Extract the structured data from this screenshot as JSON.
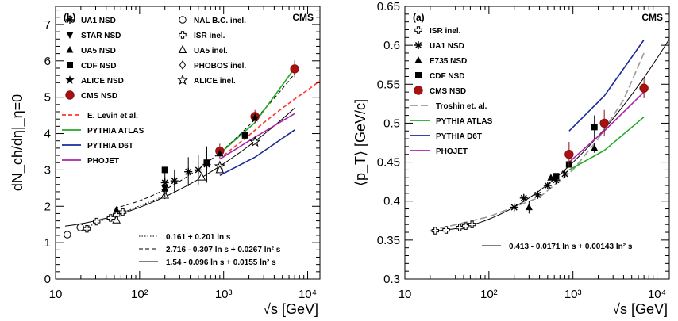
{
  "chart_data": [
    {
      "id": "b",
      "type": "scatter",
      "panel_label": "(b)",
      "experiment_label": "CMS",
      "xlabel": "√s [GeV]",
      "ylabel": "dN_ch/dη|_η=0",
      "xscale": "log",
      "xlim": [
        10,
        14000
      ],
      "ylim": [
        0,
        7.5
      ],
      "x_ticks": [
        {
          "value": 10,
          "label": "10"
        },
        {
          "value": 100,
          "label": "10²"
        },
        {
          "value": 1000,
          "label": "10³"
        },
        {
          "value": 10000,
          "label": "10⁴"
        }
      ],
      "y_ticks": [
        {
          "value": 0,
          "label": "0"
        },
        {
          "value": 1,
          "label": "1"
        },
        {
          "value": 2,
          "label": "2"
        },
        {
          "value": 3,
          "label": "3"
        },
        {
          "value": 4,
          "label": "4"
        },
        {
          "value": 5,
          "label": "5"
        },
        {
          "value": 6,
          "label": "6"
        },
        {
          "value": 7,
          "label": "7"
        }
      ],
      "legend_placement": "top-left",
      "legend_markers": [
        {
          "name": "UA1 NSD",
          "marker": "asterisk",
          "col": 0
        },
        {
          "name": "STAR NSD",
          "marker": "triangle-down",
          "col": 0
        },
        {
          "name": "UA5 NSD",
          "marker": "triangle-up",
          "col": 0
        },
        {
          "name": "CDF NSD",
          "marker": "square",
          "col": 0
        },
        {
          "name": "ALICE NSD",
          "marker": "star",
          "col": 0
        },
        {
          "name": "CMS NSD",
          "marker": "circle-red",
          "col": 0
        },
        {
          "name": "NAL B.C. inel.",
          "marker": "circle-open",
          "col": 1
        },
        {
          "name": "ISR inel.",
          "marker": "cross-open",
          "col": 1
        },
        {
          "name": "UA5 inel.",
          "marker": "triangle-open",
          "col": 1
        },
        {
          "name": "PHOBOS inel.",
          "marker": "diamond-open",
          "col": 1
        },
        {
          "name": "ALICE inel.",
          "marker": "star-open",
          "col": 1
        }
      ],
      "legend_lines": [
        {
          "name": "E. Levin et al.",
          "color": "#ff3333",
          "dash": "dashed"
        },
        {
          "name": "PYTHIA ATLAS",
          "color": "#22aa22",
          "dash": "solid"
        },
        {
          "name": "PYTHIA D6T",
          "color": "#1a2a99",
          "dash": "solid"
        },
        {
          "name": "PHOJET",
          "color": "#aa22aa",
          "dash": "solid"
        }
      ],
      "fit_legend": [
        {
          "name": "0.161 + 0.201 ln s",
          "dash": "dotted"
        },
        {
          "name": "2.716 - 0.307 ln s + 0.0267 ln² s",
          "dash": "dashed"
        },
        {
          "name": "1.54 - 0.096 ln s + 0.0155 ln² s",
          "dash": "solid"
        }
      ],
      "points": [
        {
          "series": "NAL B.C. inel.",
          "marker": "circle-open",
          "x": 13.8,
          "y": 1.22
        },
        {
          "series": "NAL B.C. inel.",
          "marker": "circle-open",
          "x": 19.7,
          "y": 1.42
        },
        {
          "series": "ISR inel.",
          "marker": "cross-open",
          "x": 23.6,
          "y": 1.38
        },
        {
          "series": "ISR inel.",
          "marker": "cross-open",
          "x": 30.8,
          "y": 1.58
        },
        {
          "series": "ISR inel.",
          "marker": "cross-open",
          "x": 45.2,
          "y": 1.68
        },
        {
          "series": "ISR inel.",
          "marker": "cross-open",
          "x": 53,
          "y": 1.76
        },
        {
          "series": "UA5 inel.",
          "marker": "triangle-open",
          "x": 53,
          "y": 1.62
        },
        {
          "series": "UA5 NSD",
          "marker": "triangle-up",
          "x": 53,
          "y": 1.9
        },
        {
          "series": "ISR inel.",
          "marker": "cross-open",
          "x": 63,
          "y": 1.84
        },
        {
          "series": "STAR NSD",
          "marker": "triangle-down",
          "x": 200,
          "y": 2.5,
          "err": 0.3
        },
        {
          "series": "UA5 inel.",
          "marker": "triangle-open",
          "x": 200,
          "y": 2.3
        },
        {
          "series": "PHOBOS inel.",
          "marker": "diamond-open",
          "x": 200,
          "y": 2.45
        },
        {
          "series": "UA5 NSD",
          "marker": "triangle-up",
          "x": 200,
          "y": 2.48
        },
        {
          "series": "UA1 NSD",
          "marker": "asterisk",
          "x": 200,
          "y": 2.65,
          "err": 0.4
        },
        {
          "series": "CDF NSD",
          "marker": "square",
          "x": 200,
          "y": 3.0
        },
        {
          "series": "UA1 NSD",
          "marker": "asterisk",
          "x": 260,
          "y": 2.7,
          "err": 0.3
        },
        {
          "series": "UA1 NSD",
          "marker": "asterisk",
          "x": 380,
          "y": 2.95,
          "err": 0.4
        },
        {
          "series": "UA1 NSD",
          "marker": "asterisk",
          "x": 500,
          "y": 3.0,
          "err": 0.4
        },
        {
          "series": "UA5 inel.",
          "marker": "triangle-open",
          "x": 546,
          "y": 2.8
        },
        {
          "series": "CDF NSD",
          "marker": "square",
          "x": 630,
          "y": 3.2
        },
        {
          "series": "UA1 NSD",
          "marker": "asterisk",
          "x": 630,
          "y": 3.15,
          "err": 0.5
        },
        {
          "series": "ALICE inel.",
          "marker": "star-open",
          "x": 900,
          "y": 3.1
        },
        {
          "series": "UA5 inel.",
          "marker": "triangle-open",
          "x": 900,
          "y": 3.0
        },
        {
          "series": "ALICE NSD",
          "marker": "star",
          "x": 900,
          "y": 3.5
        },
        {
          "series": "CMS NSD",
          "marker": "circle-red",
          "x": 900,
          "y": 3.52,
          "err": 0.2
        },
        {
          "series": "UA5 NSD",
          "marker": "triangle-up",
          "x": 900,
          "y": 3.45
        },
        {
          "series": "CDF NSD",
          "marker": "square",
          "x": 1800,
          "y": 3.95
        },
        {
          "series": "CMS NSD",
          "marker": "circle-red",
          "x": 2360,
          "y": 4.47,
          "err": 0.18
        },
        {
          "series": "ALICE inel.",
          "marker": "star-open",
          "x": 2360,
          "y": 3.77
        },
        {
          "series": "ALICE NSD",
          "marker": "star",
          "x": 2360,
          "y": 4.43
        },
        {
          "series": "CMS NSD",
          "marker": "circle-red",
          "x": 7000,
          "y": 5.78,
          "err": 0.23
        }
      ],
      "curves": [
        {
          "name": "E. Levin et al.",
          "color": "#ff3333",
          "dash": "dashed",
          "x": [
            1000,
            2000,
            3000,
            5000,
            7000,
            10000,
            14000
          ],
          "y": [
            3.4,
            3.95,
            4.3,
            4.7,
            4.95,
            5.2,
            5.45
          ]
        },
        {
          "name": "PYTHIA ATLAS",
          "color": "#22aa22",
          "dash": "solid",
          "x": [
            900,
            2360,
            7000
          ],
          "y": [
            3.45,
            4.3,
            5.8
          ]
        },
        {
          "name": "PYTHIA D6T",
          "color": "#1a2a99",
          "dash": "solid",
          "x": [
            900,
            2360,
            7000
          ],
          "y": [
            2.85,
            3.35,
            4.1
          ]
        },
        {
          "name": "PHOJET",
          "color": "#aa22aa",
          "dash": "solid",
          "x": [
            900,
            2360,
            7000
          ],
          "y": [
            3.3,
            3.9,
            4.55
          ]
        }
      ],
      "fits": [
        {
          "kind": "poly",
          "coef": [
            0.161,
            0.201,
            0
          ],
          "dash": "dotted",
          "xlim": [
            20,
            200
          ]
        },
        {
          "kind": "poly",
          "coef": [
            2.716,
            -0.307,
            0.0267
          ],
          "dash": "dashed",
          "xlim": [
            50,
            7000
          ]
        },
        {
          "kind": "poly",
          "coef": [
            1.54,
            -0.096,
            0.0155
          ],
          "dash": "solid",
          "xlim": [
            13,
            7000
          ]
        }
      ]
    },
    {
      "id": "a",
      "type": "scatter",
      "panel_label": "(a)",
      "experiment_label": "CMS",
      "xlabel": "√s [GeV]",
      "ylabel": "⟨p_T⟩ [GeV/c]",
      "xscale": "log",
      "xlim": [
        10,
        14000
      ],
      "ylim": [
        0.3,
        0.65
      ],
      "x_ticks": [
        {
          "value": 10,
          "label": "10"
        },
        {
          "value": 100,
          "label": "10²"
        },
        {
          "value": 1000,
          "label": "10³"
        },
        {
          "value": 10000,
          "label": "10⁴"
        }
      ],
      "y_ticks": [
        {
          "value": 0.3,
          "label": "0.3"
        },
        {
          "value": 0.35,
          "label": "0.35"
        },
        {
          "value": 0.4,
          "label": "0.4"
        },
        {
          "value": 0.45,
          "label": "0.45"
        },
        {
          "value": 0.5,
          "label": "0.5"
        },
        {
          "value": 0.55,
          "label": "0.55"
        },
        {
          "value": 0.6,
          "label": "0.6"
        },
        {
          "value": 0.65,
          "label": "0.65"
        }
      ],
      "legend_placement": "top-left",
      "legend_markers": [
        {
          "name": "ISR inel.",
          "marker": "cross-open",
          "col": 0
        },
        {
          "name": "UA1 NSD",
          "marker": "asterisk",
          "col": 0
        },
        {
          "name": "E735 NSD",
          "marker": "triangle-up",
          "col": 0
        },
        {
          "name": "CDF NSD",
          "marker": "square",
          "col": 0
        },
        {
          "name": "CMS NSD",
          "marker": "circle-red",
          "col": 0
        }
      ],
      "legend_lines": [
        {
          "name": "Troshin et. al.",
          "color": "#999999",
          "dash": "longdash"
        },
        {
          "name": "PYTHIA ATLAS",
          "color": "#22aa22",
          "dash": "solid"
        },
        {
          "name": "PYTHIA D6T",
          "color": "#1a2a99",
          "dash": "solid"
        },
        {
          "name": "PHOJET",
          "color": "#aa22aa",
          "dash": "solid"
        }
      ],
      "fit_legend": [
        {
          "name": "0.413 - 0.0171 ln s + 0.00143 ln² s",
          "dash": "solid"
        }
      ],
      "points": [
        {
          "series": "ISR inel.",
          "marker": "cross-open",
          "x": 23,
          "y": 0.362
        },
        {
          "series": "ISR inel.",
          "marker": "cross-open",
          "x": 31,
          "y": 0.363
        },
        {
          "series": "ISR inel.",
          "marker": "cross-open",
          "x": 45,
          "y": 0.366
        },
        {
          "series": "ISR inel.",
          "marker": "cross-open",
          "x": 53,
          "y": 0.368
        },
        {
          "series": "ISR inel.",
          "marker": "cross-open",
          "x": 63,
          "y": 0.37
        },
        {
          "series": "UA1 NSD",
          "marker": "asterisk",
          "x": 200,
          "y": 0.392
        },
        {
          "series": "UA1 NSD",
          "marker": "asterisk",
          "x": 260,
          "y": 0.404
        },
        {
          "series": "E735 NSD",
          "marker": "triangle-up",
          "x": 300,
          "y": 0.392,
          "err": 0.008
        },
        {
          "series": "UA1 NSD",
          "marker": "asterisk",
          "x": 380,
          "y": 0.408
        },
        {
          "series": "UA1 NSD",
          "marker": "asterisk",
          "x": 500,
          "y": 0.42
        },
        {
          "series": "E735 NSD",
          "marker": "triangle-up",
          "x": 546,
          "y": 0.43
        },
        {
          "series": "CDF NSD",
          "marker": "square",
          "x": 630,
          "y": 0.432
        },
        {
          "series": "UA1 NSD",
          "marker": "asterisk",
          "x": 630,
          "y": 0.427
        },
        {
          "series": "UA1 NSD",
          "marker": "asterisk",
          "x": 800,
          "y": 0.435
        },
        {
          "series": "CDF NSD",
          "marker": "square",
          "x": 900,
          "y": 0.447
        },
        {
          "series": "CMS NSD",
          "marker": "circle-red",
          "x": 900,
          "y": 0.46,
          "err": 0.016
        },
        {
          "series": "E735 NSD",
          "marker": "triangle-up",
          "x": 1800,
          "y": 0.468,
          "err": 0.006
        },
        {
          "series": "CDF NSD",
          "marker": "square",
          "x": 1800,
          "y": 0.495,
          "err": 0.015
        },
        {
          "series": "CMS NSD",
          "marker": "circle-red",
          "x": 2360,
          "y": 0.5,
          "err": 0.017
        },
        {
          "series": "CMS NSD",
          "marker": "circle-red",
          "x": 7000,
          "y": 0.545,
          "err": 0.013
        }
      ],
      "curves": [
        {
          "name": "Troshin et. al.",
          "color": "#999999",
          "dash": "longdash",
          "x": [
            20,
            100,
            400,
            1000,
            2000,
            4000,
            7000
          ],
          "y": [
            0.362,
            0.38,
            0.405,
            0.44,
            0.48,
            0.53,
            0.59
          ]
        },
        {
          "name": "PYTHIA ATLAS",
          "color": "#22aa22",
          "dash": "solid",
          "x": [
            900,
            2360,
            7000
          ],
          "y": [
            0.44,
            0.465,
            0.508
          ]
        },
        {
          "name": "PYTHIA D6T",
          "color": "#1a2a99",
          "dash": "solid",
          "x": [
            900,
            2360,
            7000
          ],
          "y": [
            0.49,
            0.535,
            0.607
          ]
        },
        {
          "name": "PHOJET",
          "color": "#aa22aa",
          "dash": "solid",
          "x": [
            900,
            2360,
            7000
          ],
          "y": [
            0.45,
            0.49,
            0.54
          ]
        }
      ],
      "fits": [
        {
          "kind": "poly",
          "coef": [
            0.413,
            -0.0171,
            0.00143
          ],
          "dash": "solid",
          "xlim": [
            20,
            14000
          ]
        }
      ]
    }
  ]
}
